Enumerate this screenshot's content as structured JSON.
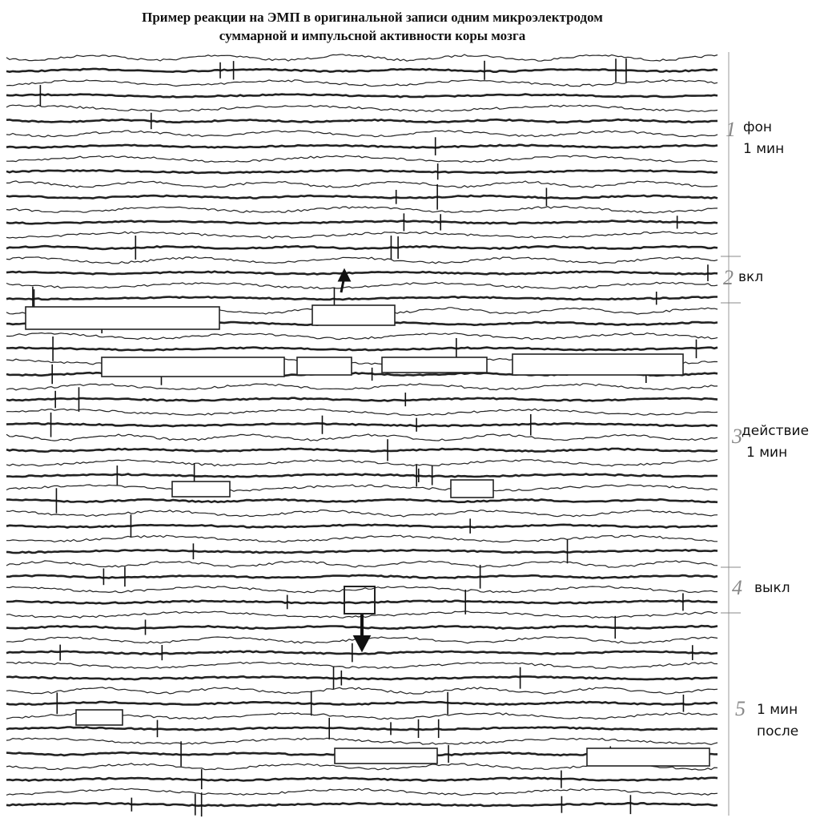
{
  "title": {
    "line1": "Пример реакции на ЭМП в оригинальной записи одним микроэлектродом",
    "line2": "суммарной  и импульсной активности коры мозга"
  },
  "sections": [
    {
      "number": "1",
      "lines": [
        "фон",
        "1 мин"
      ]
    },
    {
      "number": "2",
      "lines": [
        "вкл"
      ]
    },
    {
      "number": "3",
      "lines": [
        "действие",
        "1 мин"
      ]
    },
    {
      "number": "4",
      "lines": [
        "выкл"
      ]
    },
    {
      "number": "5",
      "lines": [
        "1 мин",
        "после"
      ]
    }
  ]
}
